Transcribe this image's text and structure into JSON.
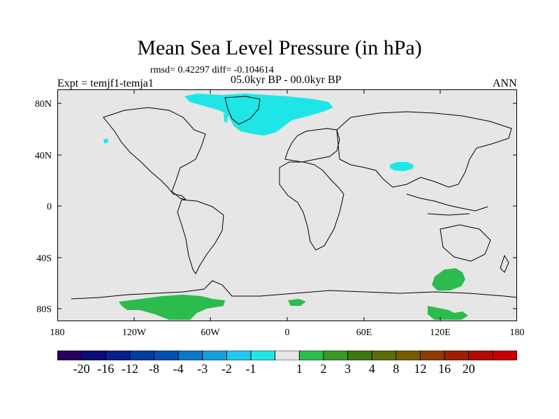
{
  "title": "Mean Sea Level Pressure (in hPa)",
  "stats": "rmsd= 0.42297 diff= -0.104614",
  "period": "05.0kyr BP - 00.0kyr BP",
  "experiment": "Expt = temjf1-temja1",
  "season": "ANN",
  "map": {
    "lat_ticks": [
      "80N",
      "40N",
      "0",
      "40S",
      "80S"
    ],
    "lon_ticks": [
      "180",
      "120W",
      "60W",
      "0",
      "60E",
      "120E",
      "180"
    ],
    "background_color": "#e6e6e6",
    "negative_fill": "#1fe6e6",
    "positive_fill": "#2bbc4d"
  },
  "colorbar": {
    "colors": [
      "#26005c",
      "#0a0a78",
      "#0a1f8c",
      "#003ca0",
      "#0050b4",
      "#0a78c8",
      "#14a0dc",
      "#1ec8f0",
      "#1fe6e6",
      "#e6e6e6",
      "#2bbc4d",
      "#3c9628",
      "#3c7814",
      "#5a6e0a",
      "#785a00",
      "#8c3c00",
      "#a01e00",
      "#b40a00",
      "#c80000"
    ],
    "labels": [
      "-20",
      "-16",
      "-12",
      "-8",
      "-4",
      "-3",
      "-2",
      "-1",
      "1",
      "2",
      "3",
      "4",
      "8",
      "12",
      "16",
      "20"
    ]
  }
}
